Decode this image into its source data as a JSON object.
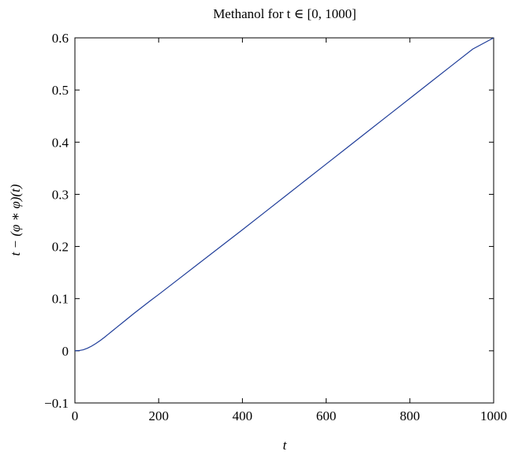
{
  "chart_data": {
    "type": "line",
    "title": "Methanol for t ∈ [0, 1000]",
    "xlabel": "t",
    "ylabel": "t − (φ ∗ φ)(t)",
    "xlim": [
      0,
      1000
    ],
    "ylim": [
      -0.1,
      0.6
    ],
    "xticks": [
      0,
      200,
      400,
      600,
      800,
      1000
    ],
    "xtick_labels": [
      "0",
      "200",
      "400",
      "600",
      "800",
      "1000"
    ],
    "yticks": [
      -0.1,
      0,
      0.1,
      0.2,
      0.3,
      0.4,
      0.5,
      0.6
    ],
    "ytick_labels": [
      "−0.1",
      "0",
      "0.1",
      "0.2",
      "0.3",
      "0.4",
      "0.5",
      "0.6"
    ],
    "grid": false,
    "line_color": "#1f3d99",
    "series": [
      {
        "x": [
          0,
          10,
          20,
          30,
          40,
          50,
          60,
          70,
          80,
          90,
          100,
          120,
          140,
          160,
          180,
          200,
          250,
          300,
          350,
          400,
          450,
          500,
          550,
          600,
          650,
          700,
          750,
          800,
          850,
          900,
          950,
          1000
        ],
        "y": [
          0,
          0.0005,
          0.002,
          0.005,
          0.009,
          0.014,
          0.0195,
          0.0255,
          0.032,
          0.0385,
          0.045,
          0.058,
          0.071,
          0.0835,
          0.096,
          0.108,
          0.139,
          0.17,
          0.201,
          0.232,
          0.2635,
          0.295,
          0.3265,
          0.358,
          0.3895,
          0.421,
          0.4525,
          0.484,
          0.5155,
          0.547,
          0.5785,
          0.6
        ]
      }
    ]
  }
}
